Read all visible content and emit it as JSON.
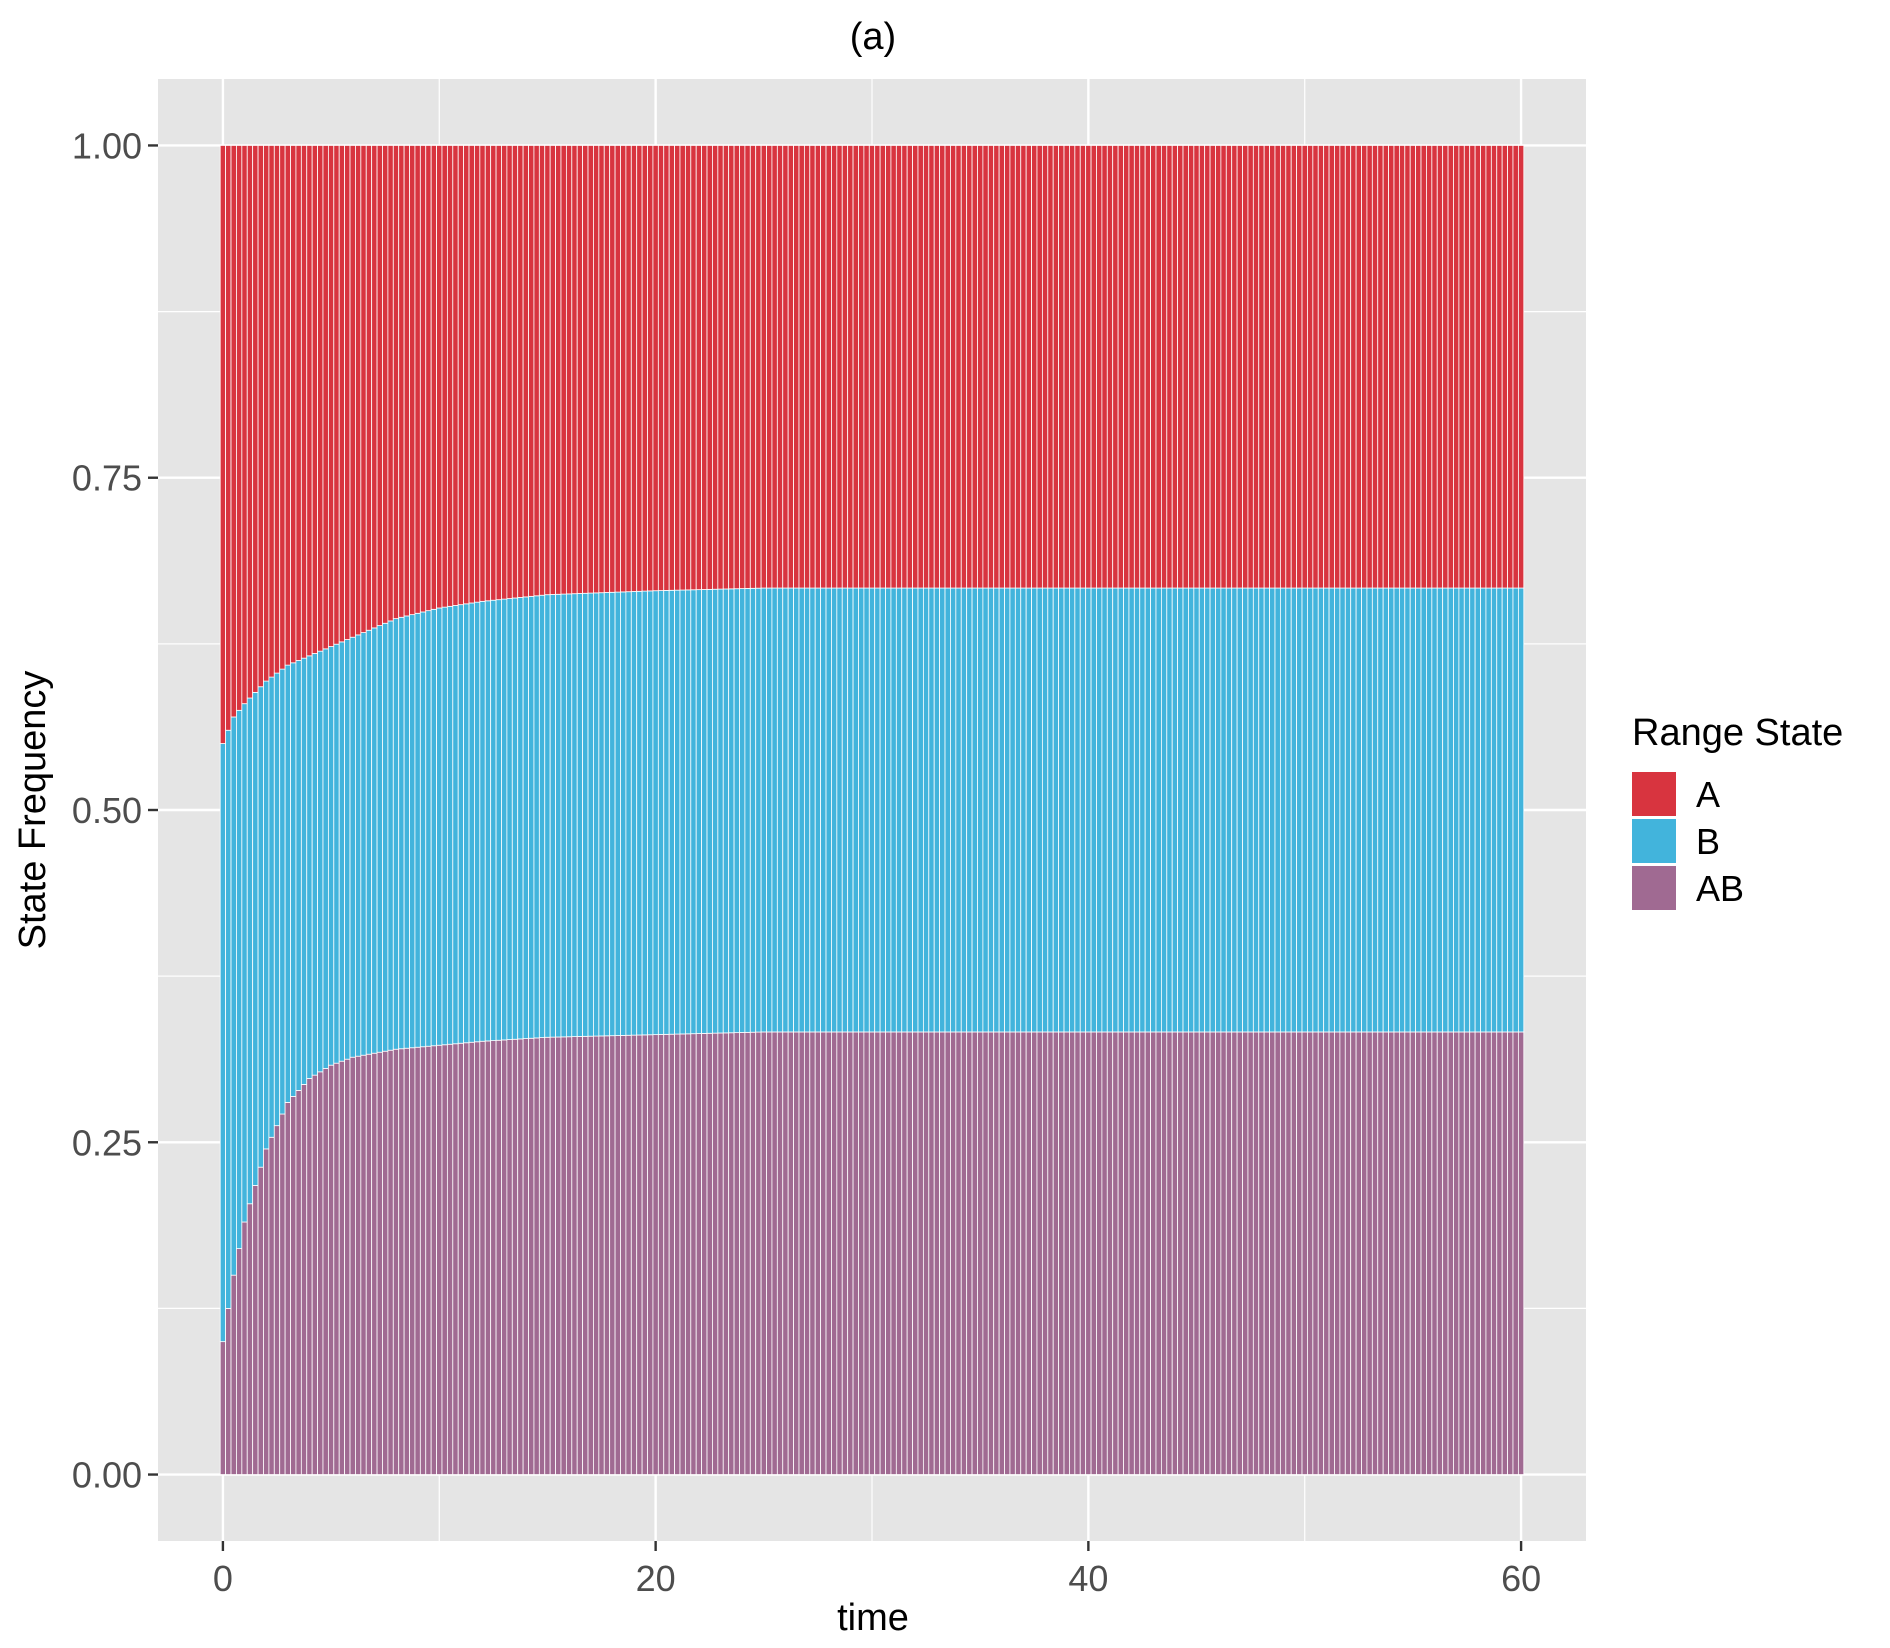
{
  "chart_data": {
    "type": "bar",
    "stacked": true,
    "title": "(a)",
    "xlabel": "time",
    "ylabel": "State Frequency",
    "xlim": [
      -3,
      63
    ],
    "ylim": [
      -0.05,
      1.05
    ],
    "xticks": [
      0,
      20,
      40,
      60
    ],
    "xtick_labels": [
      "0",
      "20",
      "40",
      "60"
    ],
    "yticks": [
      0,
      0.25,
      0.5,
      0.75,
      1.0
    ],
    "ytick_labels": [
      "0.00",
      "0.25",
      "0.50",
      "0.75",
      "1.00"
    ],
    "grid": true,
    "legend": {
      "title": "Range State",
      "placement": "right"
    },
    "x_start": 0,
    "x_end": 60,
    "bar_count": 241,
    "series": [
      {
        "name": "AB",
        "color": "#A06A92",
        "values_at": {
          "x": [
            0,
            0.5,
            1,
            2,
            3,
            4,
            5,
            6,
            8,
            10,
            12,
            15,
            20,
            25,
            30,
            40,
            50,
            60
          ],
          "y": [
            0.1,
            0.15,
            0.19,
            0.245,
            0.28,
            0.298,
            0.308,
            0.314,
            0.32,
            0.323,
            0.326,
            0.329,
            0.331,
            0.333,
            0.333,
            0.333,
            0.333,
            0.333
          ]
        }
      },
      {
        "name": "B",
        "color": "#42B4DC",
        "values_at": {
          "x": [
            0,
            0.5,
            1,
            2,
            3,
            4,
            5,
            6,
            8,
            10,
            12,
            15,
            20,
            25,
            30,
            40,
            50,
            60
          ],
          "y": [
            0.45,
            0.42,
            0.39,
            0.352,
            0.329,
            0.318,
            0.315,
            0.316,
            0.324,
            0.329,
            0.331,
            0.333,
            0.334,
            0.334,
            0.334,
            0.334,
            0.334,
            0.334
          ]
        }
      },
      {
        "name": "A",
        "color": "#D8343F",
        "values_at": {
          "x": [
            0,
            0.5,
            1,
            2,
            3,
            4,
            5,
            6,
            8,
            10,
            12,
            15,
            20,
            25,
            30,
            40,
            50,
            60
          ],
          "y": [
            0.45,
            0.43,
            0.42,
            0.403,
            0.391,
            0.384,
            0.377,
            0.37,
            0.356,
            0.348,
            0.343,
            0.338,
            0.335,
            0.333,
            0.333,
            0.333,
            0.333,
            0.333
          ]
        }
      }
    ],
    "legend_order": [
      "A",
      "B",
      "AB"
    ],
    "colors": {
      "panel": "#E5E5E5",
      "grid": "#FFFFFF",
      "tick": "#333333"
    }
  }
}
